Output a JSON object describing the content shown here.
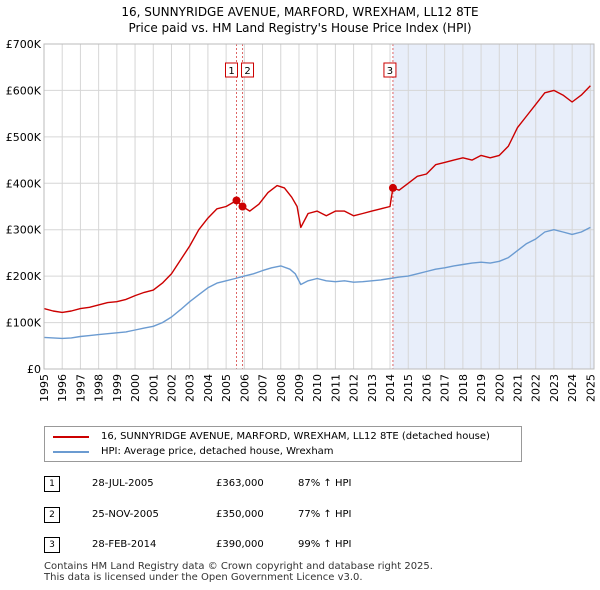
{
  "chart_data": {
    "type": "line",
    "title": "16, SUNNYRIDGE AVENUE, MARFORD, WREXHAM, LL12 8TE",
    "subtitle": "Price paid vs. HM Land Registry's House Price Index (HPI)",
    "xlabel": "",
    "ylabel": "",
    "xlim": [
      1995.0,
      2025.2
    ],
    "ylim": [
      0,
      700000
    ],
    "grid": true,
    "y_ticks": [
      {
        "value": 0,
        "label": "£0"
      },
      {
        "value": 100000,
        "label": "£100K"
      },
      {
        "value": 200000,
        "label": "£200K"
      },
      {
        "value": 300000,
        "label": "£300K"
      },
      {
        "value": 400000,
        "label": "£400K"
      },
      {
        "value": 500000,
        "label": "£500K"
      },
      {
        "value": 600000,
        "label": "£600K"
      },
      {
        "value": 700000,
        "label": "£700K"
      }
    ],
    "x_ticks": [
      "1995",
      "1996",
      "1997",
      "1998",
      "1999",
      "2000",
      "2001",
      "2002",
      "2003",
      "2004",
      "2005",
      "2006",
      "2007",
      "2008",
      "2009",
      "2010",
      "2011",
      "2012",
      "2013",
      "2014",
      "2015",
      "2016",
      "2017",
      "2018",
      "2019",
      "2020",
      "2021",
      "2022",
      "2023",
      "2024",
      "2025"
    ],
    "series": [
      {
        "name": "16, SUNNYRIDGE AVENUE, MARFORD, WREXHAM, LL12 8TE (detached house)",
        "color": "#cc0000",
        "x": [
          1995.0,
          1995.5,
          1996.0,
          1996.5,
          1997.0,
          1997.5,
          1998.0,
          1998.5,
          1999.0,
          1999.5,
          2000.0,
          2000.5,
          2001.0,
          2001.5,
          2002.0,
          2002.5,
          2003.0,
          2003.5,
          2004.0,
          2004.5,
          2005.0,
          2005.57,
          2005.9,
          2006.3,
          2006.8,
          2007.3,
          2007.8,
          2008.2,
          2008.6,
          2008.9,
          2009.1,
          2009.5,
          2010.0,
          2010.5,
          2011.0,
          2011.5,
          2012.0,
          2012.5,
          2013.0,
          2013.5,
          2014.0,
          2014.16,
          2014.5,
          2015.0,
          2015.5,
          2016.0,
          2016.5,
          2017.0,
          2017.5,
          2018.0,
          2018.5,
          2019.0,
          2019.5,
          2020.0,
          2020.5,
          2021.0,
          2021.5,
          2022.0,
          2022.5,
          2023.0,
          2023.5,
          2024.0,
          2024.5,
          2025.0
        ],
        "values": [
          130000,
          125000,
          122000,
          125000,
          130000,
          133000,
          138000,
          143000,
          145000,
          150000,
          158000,
          165000,
          170000,
          185000,
          205000,
          235000,
          265000,
          300000,
          325000,
          345000,
          350000,
          363000,
          350000,
          340000,
          355000,
          380000,
          395000,
          390000,
          370000,
          350000,
          305000,
          335000,
          340000,
          330000,
          340000,
          340000,
          330000,
          335000,
          340000,
          345000,
          350000,
          390000,
          385000,
          400000,
          415000,
          420000,
          440000,
          445000,
          450000,
          455000,
          450000,
          460000,
          455000,
          460000,
          480000,
          520000,
          545000,
          570000,
          595000,
          600000,
          590000,
          575000,
          590000,
          610000
        ]
      },
      {
        "name": "HPI: Average price, detached house, Wrexham",
        "color": "#6b9bd1",
        "x": [
          1995.0,
          1995.5,
          1996.0,
          1996.5,
          1997.0,
          1997.5,
          1998.0,
          1998.5,
          1999.0,
          1999.5,
          2000.0,
          2000.5,
          2001.0,
          2001.5,
          2002.0,
          2002.5,
          2003.0,
          2003.5,
          2004.0,
          2004.5,
          2005.0,
          2005.5,
          2006.0,
          2006.5,
          2007.0,
          2007.5,
          2008.0,
          2008.5,
          2008.8,
          2009.1,
          2009.5,
          2010.0,
          2010.5,
          2011.0,
          2011.5,
          2012.0,
          2012.5,
          2013.0,
          2013.5,
          2014.0,
          2014.5,
          2015.0,
          2015.5,
          2016.0,
          2016.5,
          2017.0,
          2017.5,
          2018.0,
          2018.5,
          2019.0,
          2019.5,
          2020.0,
          2020.5,
          2021.0,
          2021.5,
          2022.0,
          2022.5,
          2023.0,
          2023.5,
          2024.0,
          2024.5,
          2025.0
        ],
        "values": [
          68000,
          67000,
          66000,
          67000,
          70000,
          72000,
          74000,
          76000,
          78000,
          80000,
          84000,
          88000,
          92000,
          100000,
          112000,
          128000,
          145000,
          160000,
          175000,
          185000,
          190000,
          195000,
          200000,
          205000,
          212000,
          218000,
          222000,
          215000,
          205000,
          182000,
          190000,
          195000,
          190000,
          188000,
          190000,
          187000,
          188000,
          190000,
          192000,
          195000,
          198000,
          200000,
          205000,
          210000,
          215000,
          218000,
          222000,
          225000,
          228000,
          230000,
          228000,
          232000,
          240000,
          255000,
          270000,
          280000,
          295000,
          300000,
          295000,
          290000,
          295000,
          305000
        ]
      }
    ],
    "markers": [
      {
        "label": "1",
        "x": 2005.57,
        "value": 363000
      },
      {
        "label": "2",
        "x": 2005.9,
        "value": 350000
      },
      {
        "label": "3",
        "x": 2014.16,
        "value": 390000
      }
    ],
    "shaded_region": {
      "from": 2014.16,
      "to": 2025.2,
      "color": "#e8eefa"
    }
  },
  "legend": {
    "property_label": "16, SUNNYRIDGE AVENUE, MARFORD, WREXHAM, LL12 8TE (detached house)",
    "hpi_label": "HPI: Average price, detached house, Wrexham",
    "property_color": "#cc0000",
    "hpi_color": "#6b9bd1"
  },
  "sales": [
    {
      "num": "1",
      "date": "28-JUL-2005",
      "price": "£363,000",
      "hpi": "87% ↑ HPI"
    },
    {
      "num": "2",
      "date": "25-NOV-2005",
      "price": "£350,000",
      "hpi": "77% ↑ HPI"
    },
    {
      "num": "3",
      "date": "28-FEB-2014",
      "price": "£390,000",
      "hpi": "99% ↑ HPI"
    }
  ],
  "footer": {
    "line1": "Contains HM Land Registry data © Crown copyright and database right 2025.",
    "line2": "This data is licensed under the Open Government Licence v3.0."
  }
}
